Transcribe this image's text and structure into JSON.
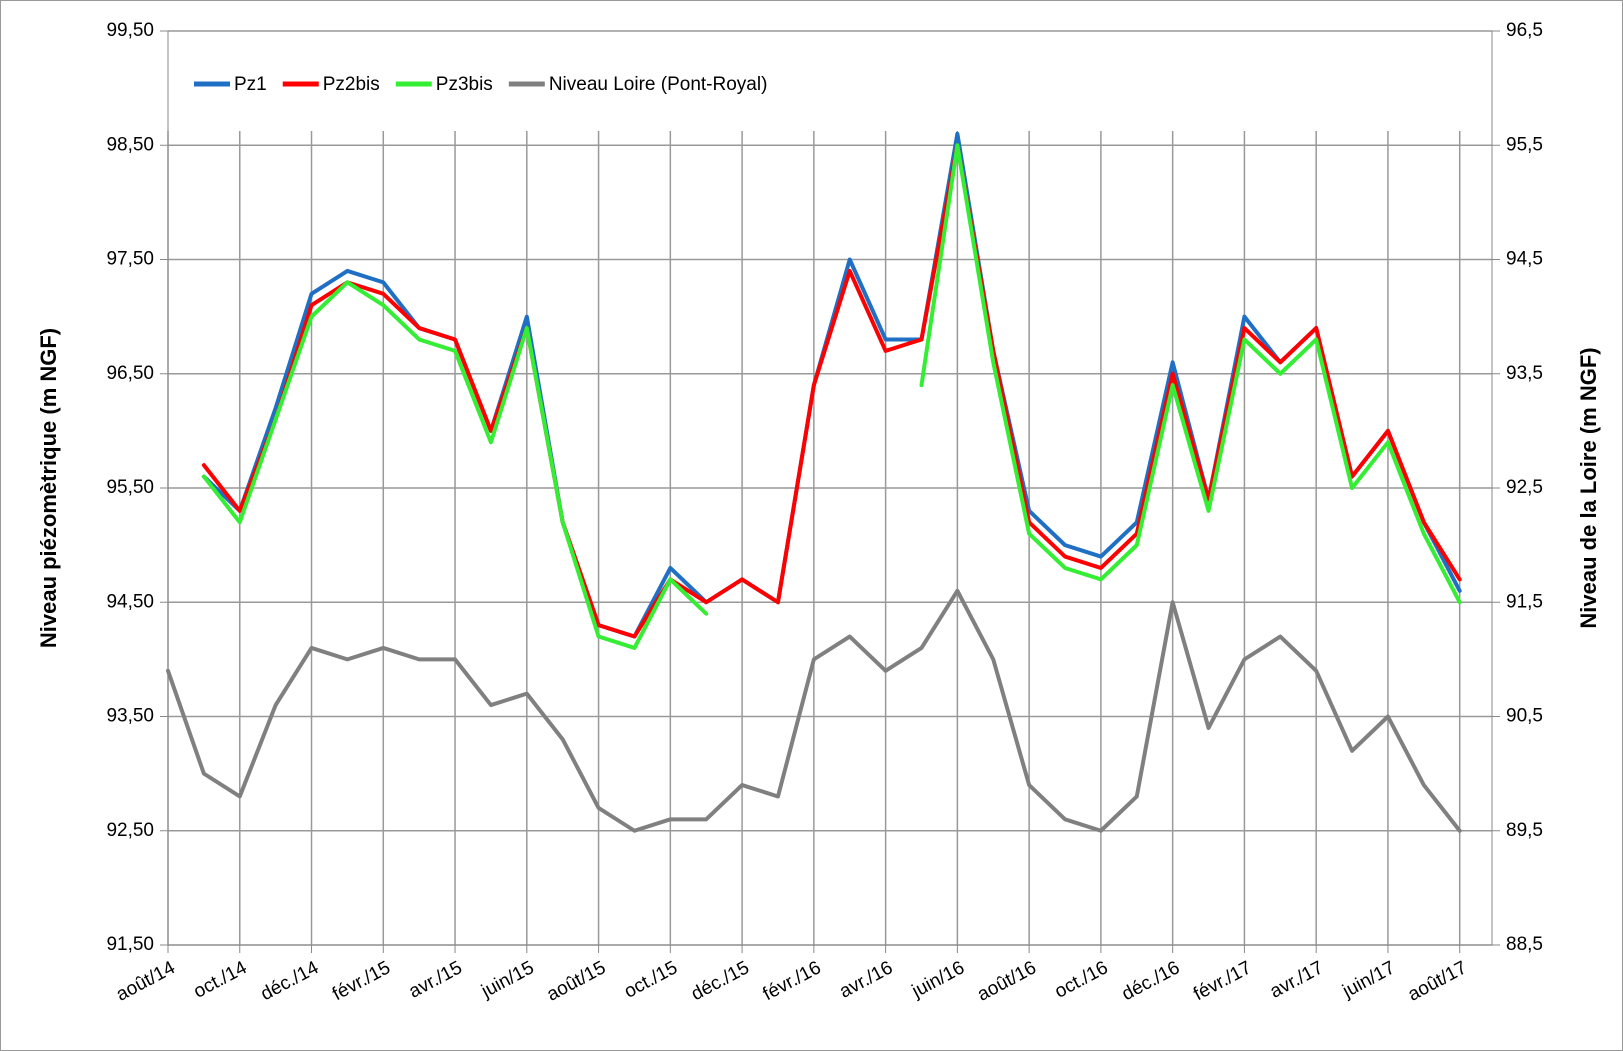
{
  "chart_data": {
    "type": "line",
    "y_label": "Niveau piézomètrique (m NGF)",
    "y2_label": "Niveau de la Loire (m NGF)",
    "categories": [
      "août/14",
      null,
      "oct./14",
      null,
      "déc./14",
      null,
      "févr./15",
      null,
      "avr./15",
      null,
      "juin/15",
      null,
      "août/15",
      null,
      "oct./15",
      null,
      "déc./15",
      null,
      "févr./16",
      null,
      "avr./16",
      null,
      "juin/16",
      null,
      "août/16",
      null,
      "oct./16",
      null,
      "déc./16",
      null,
      "févr./17",
      null,
      "avr./17",
      null,
      "juin/17",
      null,
      "août/17"
    ],
    "series": [
      {
        "name": "Pz1",
        "color": "#1f6fc5",
        "values": [
          null,
          95.6,
          95.3,
          96.2,
          97.2,
          97.4,
          97.3,
          96.9,
          96.8,
          96.0,
          97.0,
          95.2,
          94.3,
          94.2,
          94.8,
          94.5,
          94.7,
          94.5,
          96.4,
          97.5,
          96.8,
          96.8,
          98.6,
          96.7,
          95.3,
          95.0,
          94.9,
          95.2,
          96.6,
          95.4,
          97.0,
          96.6,
          96.9,
          95.6,
          96.0,
          95.2,
          94.6
        ]
      },
      {
        "name": "Pz2bis",
        "color": "#ff0000",
        "values": [
          null,
          95.7,
          95.3,
          96.1,
          97.1,
          97.3,
          97.2,
          96.9,
          96.8,
          96.0,
          96.9,
          95.2,
          94.3,
          94.2,
          94.7,
          94.5,
          94.7,
          94.5,
          96.4,
          97.4,
          96.7,
          96.8,
          98.5,
          96.7,
          95.2,
          94.9,
          94.8,
          95.1,
          96.5,
          95.4,
          96.9,
          96.6,
          96.9,
          95.6,
          96.0,
          95.2,
          94.7
        ]
      },
      {
        "name": "Pz3bis",
        "color": "#33ee33",
        "values": [
          null,
          95.6,
          95.2,
          96.1,
          97.0,
          97.3,
          97.1,
          96.8,
          96.7,
          95.9,
          96.9,
          95.2,
          94.2,
          94.1,
          94.7,
          94.4,
          null,
          null,
          null,
          null,
          null,
          96.4,
          98.5,
          96.6,
          95.1,
          94.8,
          94.7,
          95.0,
          96.4,
          95.3,
          96.8,
          96.5,
          96.8,
          95.5,
          95.9,
          95.1,
          94.5
        ]
      },
      {
        "name": "Niveau Loire (Pont-Royal)",
        "color": "#808080",
        "axis": "y2",
        "values": [
          90.9,
          90.0,
          89.8,
          90.6,
          91.1,
          91.0,
          91.1,
          91.0,
          91.0,
          90.6,
          90.7,
          90.3,
          89.7,
          89.5,
          89.6,
          89.6,
          89.9,
          89.8,
          91.0,
          91.2,
          90.9,
          91.1,
          91.6,
          91.0,
          89.9,
          89.6,
          89.5,
          89.8,
          91.5,
          90.4,
          91.0,
          91.2,
          90.9,
          90.2,
          90.5,
          89.9,
          89.5
        ]
      }
    ],
    "ylim": [
      91.5,
      99.5
    ],
    "yticks": [
      {
        "value": 91.5,
        "label": "91,50"
      },
      {
        "value": 92.5,
        "label": "92,50"
      },
      {
        "value": 93.5,
        "label": "93,50"
      },
      {
        "value": 94.5,
        "label": "94,50"
      },
      {
        "value": 95.5,
        "label": "95,50"
      },
      {
        "value": 96.5,
        "label": "96,50"
      },
      {
        "value": 97.5,
        "label": "97,50"
      },
      {
        "value": 98.5,
        "label": "98,50"
      },
      {
        "value": 99.5,
        "label": "99,50"
      }
    ],
    "y2lim": [
      88.5,
      96.5
    ],
    "y2ticks": [
      {
        "value": 88.5,
        "label": "88,5"
      },
      {
        "value": 89.5,
        "label": "89,5"
      },
      {
        "value": 90.5,
        "label": "90,5"
      },
      {
        "value": 91.5,
        "label": "91,5"
      },
      {
        "value": 92.5,
        "label": "92,5"
      },
      {
        "value": 93.5,
        "label": "93,5"
      },
      {
        "value": 94.5,
        "label": "94,5"
      },
      {
        "value": 95.5,
        "label": "95,5"
      },
      {
        "value": 96.5,
        "label": "96,5"
      }
    ],
    "grid": true,
    "legend": "top-left"
  }
}
